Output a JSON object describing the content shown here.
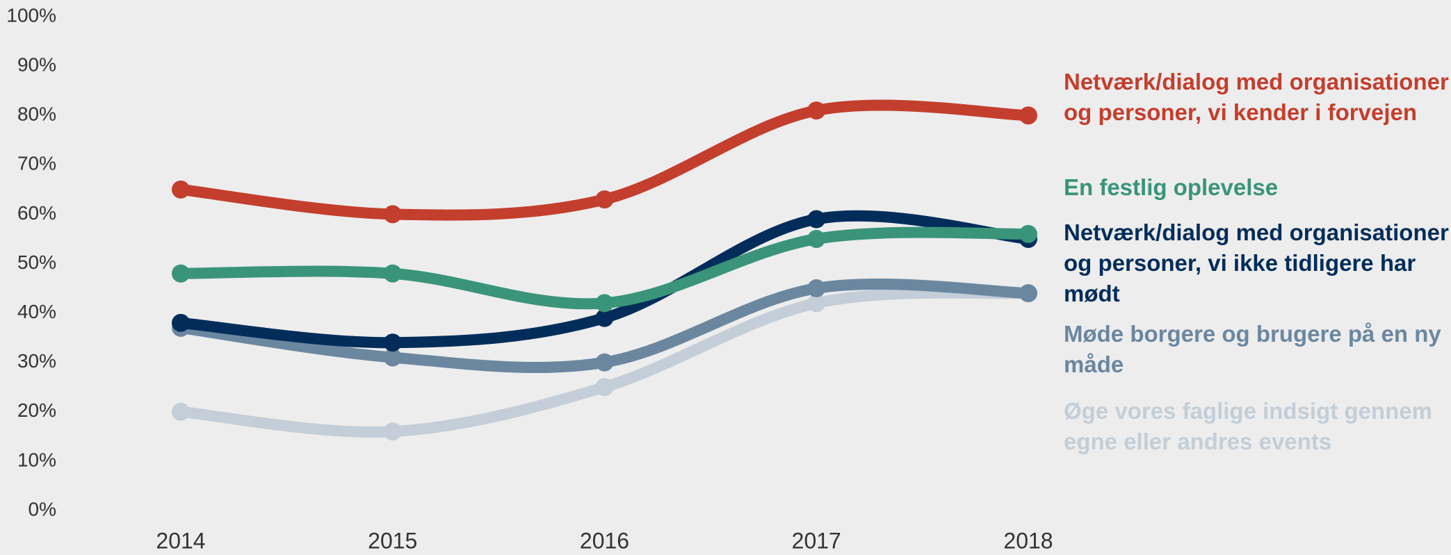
{
  "chart_data": {
    "type": "line",
    "categories": [
      "2014",
      "2015",
      "2016",
      "2017",
      "2018"
    ],
    "series": [
      {
        "name": "Netværk/dialog med organisationer og personer, vi kender i forvejen",
        "color": "#c43e2d",
        "values": [
          65,
          60,
          63,
          81,
          80
        ]
      },
      {
        "name": "En festlig oplevelse",
        "color": "#3a9479",
        "values": [
          48,
          48,
          42,
          55,
          56
        ]
      },
      {
        "name": "Netværk/dialog med organisationer og personer, vi ikke tidligere har mødt",
        "color": "#022d5a",
        "values": [
          38,
          34,
          39,
          59,
          55
        ]
      },
      {
        "name": "Møde borgere og brugere på en ny måde",
        "color": "#6b87a0",
        "values": [
          37,
          31,
          30,
          45,
          44
        ]
      },
      {
        "name": "Øge vores faglige indsigt gennem egne eller andres events",
        "color": "#c3ced8",
        "values": [
          20,
          16,
          25,
          42,
          44
        ]
      }
    ],
    "ylim": [
      0,
      100
    ],
    "yticks": [
      {
        "value": 0,
        "label": "0%"
      },
      {
        "value": 10,
        "label": "10%"
      },
      {
        "value": 20,
        "label": "20%"
      },
      {
        "value": 30,
        "label": "30%"
      },
      {
        "value": 40,
        "label": "40%"
      },
      {
        "value": 50,
        "label": "50%"
      },
      {
        "value": 60,
        "label": "60%"
      },
      {
        "value": 70,
        "label": "70%"
      },
      {
        "value": 80,
        "label": "80%"
      },
      {
        "value": 90,
        "label": "90%"
      },
      {
        "value": 100,
        "label": "100%"
      }
    ],
    "grid": false,
    "legend": "right"
  }
}
